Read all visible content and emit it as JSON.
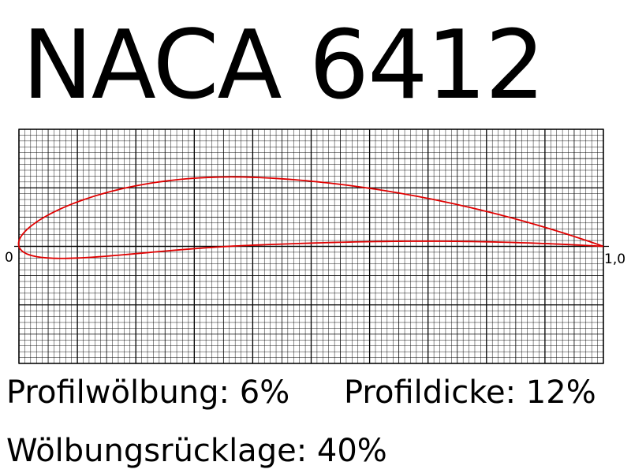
{
  "title": "NACA 6412",
  "profile": {
    "max_camber": 0.06,
    "camber_position": 0.4,
    "thickness": 0.12
  },
  "axis": {
    "origin_label": "0",
    "end_label": "1,0",
    "x_range": [
      0,
      1
    ],
    "y_range": [
      -0.2,
      0.2
    ]
  },
  "params": {
    "camber_text": "Profilwölbung: 6%",
    "thickness_text": "Profildicke: 12%",
    "camber_pos_text": "Wölbungsrücklage: 40%"
  },
  "colors": {
    "profile": "#e00000",
    "grid": "#000000"
  }
}
